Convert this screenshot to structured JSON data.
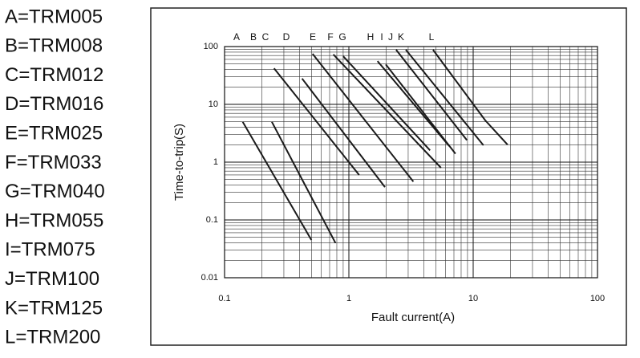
{
  "chart_data": {
    "type": "line",
    "legend_labels": [
      "A=TRM005",
      "B=TRM008",
      "C=TRM012",
      "D=TRM016",
      "E=TRM025",
      "F=TRM033",
      "G=TRM040",
      "H=TRM055",
      "I=TRM075",
      "J=TRM100",
      "K=TRM125",
      "L=TRM200"
    ],
    "xlabel": "Fault current(A)",
    "ylabel": "Time-to-trip(S)",
    "log_x": true,
    "log_y": true,
    "grid": true,
    "color": "#1a1a1a",
    "xlim": [
      0.1,
      100
    ],
    "xticks": [
      0.1,
      1,
      10,
      100
    ],
    "ylim": [
      0.01,
      100
    ],
    "yticks": [
      0.01,
      0.1,
      1,
      10,
      100
    ],
    "series": [
      {
        "name": "A",
        "x": [
          0.14,
          0.5
        ],
        "values": [
          5,
          0.045
        ]
      },
      {
        "name": "B",
        "x": [
          0.24,
          0.78
        ],
        "values": [
          5,
          0.04
        ]
      },
      {
        "name": "C",
        "x": [
          0.25,
          1.21
        ],
        "values": [
          42,
          0.6
        ]
      },
      {
        "name": "D",
        "x": [
          0.42,
          1.95
        ],
        "values": [
          28,
          0.37
        ]
      },
      {
        "name": "E",
        "x": [
          0.51,
          3.3
        ],
        "values": [
          75,
          0.46
        ]
      },
      {
        "name": "F",
        "x": [
          0.75,
          5.5
        ],
        "values": [
          73,
          0.8
        ]
      },
      {
        "name": "G",
        "x": [
          0.9,
          4.5
        ],
        "values": [
          68,
          1.6
        ]
      },
      {
        "name": "H",
        "x": [
          1.7,
          6.4
        ],
        "values": [
          56,
          1.9
        ]
      },
      {
        "name": "I",
        "x": [
          1.98,
          7.2
        ],
        "values": [
          49,
          1.4
        ]
      },
      {
        "name": "J",
        "x": [
          2.4,
          8.9
        ],
        "values": [
          88,
          2.4
        ]
      },
      {
        "name": "K",
        "x": [
          2.87,
          12.1
        ],
        "values": [
          88,
          1.96
        ]
      },
      {
        "name": "L",
        "x": [
          4.75,
          12.5,
          18.9
        ],
        "values": [
          88,
          5.3,
          2
        ]
      }
    ]
  }
}
